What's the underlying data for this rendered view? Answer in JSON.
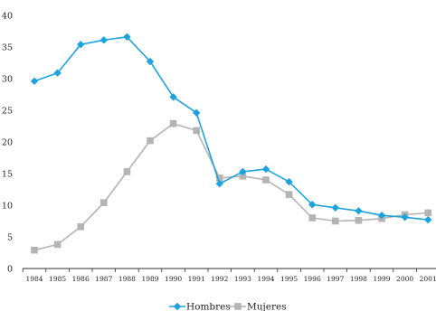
{
  "chart_data": {
    "type": "line",
    "title": "",
    "xlabel": "",
    "ylabel": "",
    "x": [
      "1984",
      "1985",
      "1986",
      "1987",
      "1988",
      "1989",
      "1990",
      "1991",
      "1992",
      "1993",
      "1994",
      "1995",
      "1996",
      "1997",
      "1998",
      "1999",
      "2000",
      "2001"
    ],
    "ylim": [
      0,
      40
    ],
    "yticks": [
      "0",
      "5",
      "10",
      "15",
      "20",
      "25",
      "30",
      "35",
      "40"
    ],
    "grid": false,
    "legend_position": "bottom-center",
    "series": [
      {
        "name": "Hombres",
        "color": "#1aa3dc",
        "marker": "diamond",
        "values": [
          29.6,
          30.9,
          35.4,
          36.1,
          36.6,
          32.7,
          27.1,
          24.6,
          13.4,
          15.3,
          15.7,
          13.7,
          10.1,
          9.6,
          9.1,
          8.4,
          8.1,
          7.7
        ]
      },
      {
        "name": "Mujeres",
        "color": "#b4b4b4",
        "marker": "square",
        "values": [
          2.9,
          3.8,
          6.6,
          10.4,
          15.3,
          20.2,
          22.9,
          21.8,
          14.3,
          14.6,
          14.0,
          11.7,
          8.0,
          7.5,
          7.6,
          7.9,
          8.5,
          8.8
        ]
      }
    ]
  }
}
